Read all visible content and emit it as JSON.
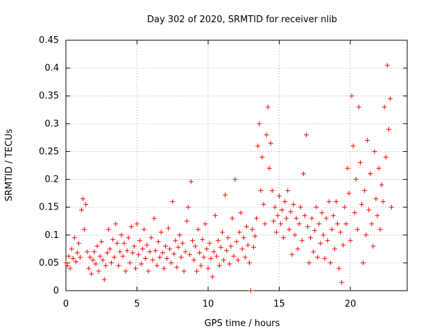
{
  "chart_data": {
    "type": "scatter",
    "title": "Day 302 of 2020, SRMTID for receiver nlib",
    "xlabel": "GPS time / hours",
    "ylabel": "SRMTID / TECUs",
    "xlim": [
      0,
      24
    ],
    "ylim": [
      0,
      0.45
    ],
    "x_ticks": [
      "0",
      "5",
      "10",
      "15",
      "20"
    ],
    "y_ticks": [
      "0",
      "0.05",
      "0.1",
      "0.15",
      "0.2",
      "0.25",
      "0.3",
      "0.35",
      "0.4",
      "0.45"
    ],
    "grid": true,
    "legend": "none",
    "marker": "plus",
    "color": "#ff0000",
    "series": [
      {
        "points": [
          [
            0.0,
            0.05
          ],
          [
            0.1,
            0.045
          ],
          [
            0.2,
            0.062
          ],
          [
            0.3,
            0.04
          ],
          [
            0.4,
            0.075
          ],
          [
            0.5,
            0.058
          ],
          [
            0.6,
            0.095
          ],
          [
            0.7,
            0.052
          ],
          [
            0.8,
            0.068
          ],
          [
            0.9,
            0.085
          ],
          [
            1.0,
            0.06
          ],
          [
            1.1,
            0.145
          ],
          [
            1.2,
            0.165
          ],
          [
            1.3,
            0.11
          ],
          [
            1.4,
            0.155
          ],
          [
            1.5,
            0.07
          ],
          [
            1.6,
            0.04
          ],
          [
            1.7,
            0.06
          ],
          [
            1.8,
            0.03
          ],
          [
            1.9,
            0.055
          ],
          [
            2.0,
            0.07
          ],
          [
            2.1,
            0.048
          ],
          [
            2.2,
            0.08
          ],
          [
            2.3,
            0.035
          ],
          [
            2.4,
            0.062
          ],
          [
            2.5,
            0.088
          ],
          [
            2.6,
            0.055
          ],
          [
            2.7,
            0.02
          ],
          [
            2.8,
            0.045
          ],
          [
            2.9,
            0.068
          ],
          [
            3.0,
            0.11
          ],
          [
            3.1,
            0.075
          ],
          [
            3.2,
            0.05
          ],
          [
            3.3,
            0.092
          ],
          [
            3.4,
            0.06
          ],
          [
            3.5,
            0.12
          ],
          [
            3.6,
            0.085
          ],
          [
            3.7,
            0.045
          ],
          [
            3.8,
            0.07
          ],
          [
            3.9,
            0.1
          ],
          [
            4.0,
            0.062
          ],
          [
            4.1,
            0.085
          ],
          [
            4.2,
            0.035
          ],
          [
            4.3,
            0.072
          ],
          [
            4.4,
            0.095
          ],
          [
            4.5,
            0.05
          ],
          [
            4.6,
            0.115
          ],
          [
            4.7,
            0.068
          ],
          [
            4.8,
            0.08
          ],
          [
            4.9,
            0.04
          ],
          [
            5.0,
            0.12
          ],
          [
            5.1,
            0.065
          ],
          [
            5.2,
            0.09
          ],
          [
            5.3,
            0.048
          ],
          [
            5.4,
            0.075
          ],
          [
            5.5,
            0.11
          ],
          [
            5.6,
            0.058
          ],
          [
            5.7,
            0.082
          ],
          [
            5.8,
            0.035
          ],
          [
            5.9,
            0.07
          ],
          [
            6.0,
            0.095
          ],
          [
            6.1,
            0.055
          ],
          [
            6.2,
            0.13
          ],
          [
            6.3,
            0.072
          ],
          [
            6.4,
            0.045
          ],
          [
            6.5,
            0.088
          ],
          [
            6.6,
            0.06
          ],
          [
            6.7,
            0.105
          ],
          [
            6.8,
            0.068
          ],
          [
            6.9,
            0.04
          ],
          [
            7.0,
            0.08
          ],
          [
            7.1,
            0.058
          ],
          [
            7.2,
            0.112
          ],
          [
            7.3,
            0.075
          ],
          [
            7.4,
            0.05
          ],
          [
            7.5,
            0.16
          ],
          [
            7.6,
            0.066
          ],
          [
            7.7,
            0.09
          ],
          [
            7.8,
            0.042
          ],
          [
            7.9,
            0.078
          ],
          [
            8.0,
            0.1
          ],
          [
            8.1,
            0.06
          ],
          [
            8.2,
            0.085
          ],
          [
            8.3,
            0.035
          ],
          [
            8.4,
            0.07
          ],
          [
            8.5,
            0.125
          ],
          [
            8.6,
            0.15
          ],
          [
            8.7,
            0.065
          ],
          [
            8.8,
            0.196
          ],
          [
            8.9,
            0.09
          ],
          [
            9.0,
            0.055
          ],
          [
            9.1,
            0.08
          ],
          [
            9.2,
            0.035
          ],
          [
            9.3,
            0.11
          ],
          [
            9.4,
            0.068
          ],
          [
            9.5,
            0.045
          ],
          [
            9.6,
            0.092
          ],
          [
            9.7,
            0.06
          ],
          [
            9.8,
            0.12
          ],
          [
            9.9,
            0.075
          ],
          [
            10.0,
            0.04
          ],
          [
            10.1,
            0.085
          ],
          [
            10.2,
            0.058
          ],
          [
            10.3,
            0.025
          ],
          [
            10.4,
            0.07
          ],
          [
            10.5,
            0.135
          ],
          [
            10.6,
            0.062
          ],
          [
            10.7,
            0.09
          ],
          [
            10.8,
            0.045
          ],
          [
            10.9,
            0.078
          ],
          [
            11.0,
            0.105
          ],
          [
            11.1,
            0.055
          ],
          [
            11.2,
            0.172
          ],
          [
            11.3,
            0.072
          ],
          [
            11.4,
            0.095
          ],
          [
            11.5,
            0.048
          ],
          [
            11.6,
            0.08
          ],
          [
            11.7,
            0.13
          ],
          [
            11.8,
            0.062
          ],
          [
            11.9,
            0.2
          ],
          [
            12.0,
            0.088
          ],
          [
            12.1,
            0.055
          ],
          [
            12.2,
            0.105
          ],
          [
            12.3,
            0.14
          ],
          [
            12.4,
            0.075
          ],
          [
            12.5,
            0.095
          ],
          [
            12.6,
            0.06
          ],
          [
            12.7,
            0.115
          ],
          [
            12.8,
            0.082
          ],
          [
            12.9,
            0.05
          ],
          [
            13.0,
            0.0
          ],
          [
            13.1,
            0.11
          ],
          [
            13.2,
            0.078
          ],
          [
            13.3,
            0.098
          ],
          [
            13.4,
            0.13
          ],
          [
            13.5,
            0.26
          ],
          [
            13.6,
            0.3
          ],
          [
            13.7,
            0.18
          ],
          [
            13.8,
            0.24
          ],
          [
            13.9,
            0.155
          ],
          [
            14.0,
            0.12
          ],
          [
            14.1,
            0.28
          ],
          [
            14.2,
            0.33
          ],
          [
            14.3,
            0.22
          ],
          [
            14.4,
            0.265
          ],
          [
            14.5,
            0.18
          ],
          [
            14.6,
            0.125
          ],
          [
            14.7,
            0.15
          ],
          [
            14.8,
            0.105
          ],
          [
            14.9,
            0.135
          ],
          [
            15.0,
            0.17
          ],
          [
            15.1,
            0.12
          ],
          [
            15.2,
            0.145
          ],
          [
            15.3,
            0.095
          ],
          [
            15.4,
            0.16
          ],
          [
            15.5,
            0.13
          ],
          [
            15.6,
            0.18
          ],
          [
            15.7,
            0.11
          ],
          [
            15.8,
            0.142
          ],
          [
            15.9,
            0.065
          ],
          [
            16.0,
            0.155
          ],
          [
            16.1,
            0.1
          ],
          [
            16.2,
            0.13
          ],
          [
            16.3,
            0.075
          ],
          [
            16.4,
            0.12
          ],
          [
            16.5,
            0.15
          ],
          [
            16.6,
            0.09
          ],
          [
            16.7,
            0.21
          ],
          [
            16.8,
            0.135
          ],
          [
            16.9,
            0.28
          ],
          [
            17.0,
            0.115
          ],
          [
            17.1,
            0.05
          ],
          [
            17.2,
            0.095
          ],
          [
            17.3,
            0.13
          ],
          [
            17.4,
            0.07
          ],
          [
            17.5,
            0.108
          ],
          [
            17.6,
            0.15
          ],
          [
            17.7,
            0.06
          ],
          [
            17.8,
            0.12
          ],
          [
            17.9,
            0.085
          ],
          [
            18.0,
            0.14
          ],
          [
            18.1,
            0.1
          ],
          [
            18.2,
            0.058
          ],
          [
            18.3,
            0.13
          ],
          [
            18.4,
            0.09
          ],
          [
            18.5,
            0.16
          ],
          [
            18.6,
            0.05
          ],
          [
            18.7,
            0.11
          ],
          [
            18.8,
            0.135
          ],
          [
            18.9,
            0.075
          ],
          [
            19.0,
            0.16
          ],
          [
            19.1,
            0.12
          ],
          [
            19.2,
            0.04
          ],
          [
            19.3,
            0.105
          ],
          [
            19.4,
            0.015
          ],
          [
            19.5,
            0.082
          ],
          [
            19.6,
            0.15
          ],
          [
            19.7,
            0.12
          ],
          [
            19.8,
            0.22
          ],
          [
            19.9,
            0.175
          ],
          [
            20.0,
            0.09
          ],
          [
            20.1,
            0.35
          ],
          [
            20.2,
            0.26
          ],
          [
            20.3,
            0.14
          ],
          [
            20.4,
            0.2
          ],
          [
            20.5,
            0.11
          ],
          [
            20.6,
            0.33
          ],
          [
            20.7,
            0.23
          ],
          [
            20.8,
            0.155
          ],
          [
            20.9,
            0.05
          ],
          [
            21.0,
            0.18
          ],
          [
            21.1,
            0.1
          ],
          [
            21.2,
            0.27
          ],
          [
            21.3,
            0.145
          ],
          [
            21.4,
            0.21
          ],
          [
            21.5,
            0.12
          ],
          [
            21.6,
            0.08
          ],
          [
            21.7,
            0.25
          ],
          [
            21.8,
            0.165
          ],
          [
            21.9,
            0.135
          ],
          [
            22.0,
            0.22
          ],
          [
            22.1,
            0.11
          ],
          [
            22.2,
            0.19
          ],
          [
            22.3,
            0.16
          ],
          [
            22.4,
            0.33
          ],
          [
            22.5,
            0.24
          ],
          [
            22.6,
            0.405
          ],
          [
            22.7,
            0.29
          ],
          [
            22.8,
            0.345
          ],
          [
            22.9,
            0.15
          ]
        ]
      }
    ]
  }
}
